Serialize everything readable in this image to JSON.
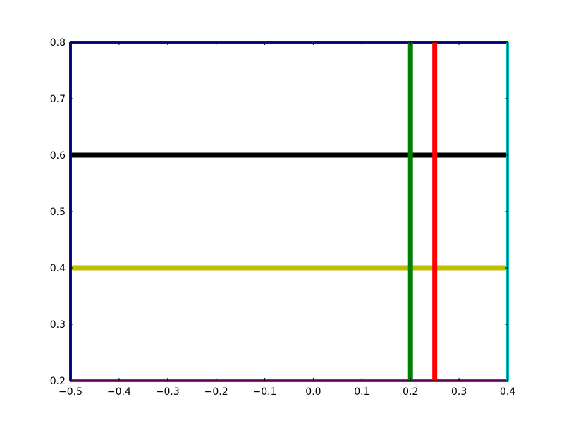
{
  "chart_data": {
    "type": "line",
    "title": "",
    "xlabel": "",
    "ylabel": "",
    "xlim": [
      -0.5,
      0.4
    ],
    "ylim": [
      0.2,
      0.8
    ],
    "x_ticks": [
      -0.5,
      -0.4,
      -0.3,
      -0.2,
      -0.1,
      0.0,
      0.1,
      0.2,
      0.3,
      0.4
    ],
    "x_tick_labels": [
      "−0.5",
      "−0.4",
      "−0.3",
      "−0.2",
      "−0.1",
      "0.0",
      "0.1",
      "0.2",
      "0.3",
      "0.4"
    ],
    "y_ticks": [
      0.2,
      0.3,
      0.4,
      0.5,
      0.6,
      0.7,
      0.8
    ],
    "y_tick_labels": [
      "0.2",
      "0.3",
      "0.4",
      "0.5",
      "0.6",
      "0.7",
      "0.8"
    ],
    "grid": false,
    "legend": false,
    "vertical_lines": [
      {
        "x": -0.5,
        "color": "#0000ff",
        "weight": "medium"
      },
      {
        "x": 0.2,
        "color": "#007f00",
        "weight": "thick"
      },
      {
        "x": 0.25,
        "color": "#ff0000",
        "weight": "thick"
      },
      {
        "x": 0.4,
        "color": "#00bfbf",
        "weight": "medium"
      }
    ],
    "horizontal_lines": [
      {
        "y": 0.8,
        "color": "#0000ff",
        "weight": "medium"
      },
      {
        "y": 0.6,
        "color": "#000000",
        "weight": "thick"
      },
      {
        "y": 0.4,
        "color": "#bfbf00",
        "weight": "thick"
      },
      {
        "y": 0.2,
        "color": "#bf00bf",
        "weight": "medium"
      }
    ]
  }
}
